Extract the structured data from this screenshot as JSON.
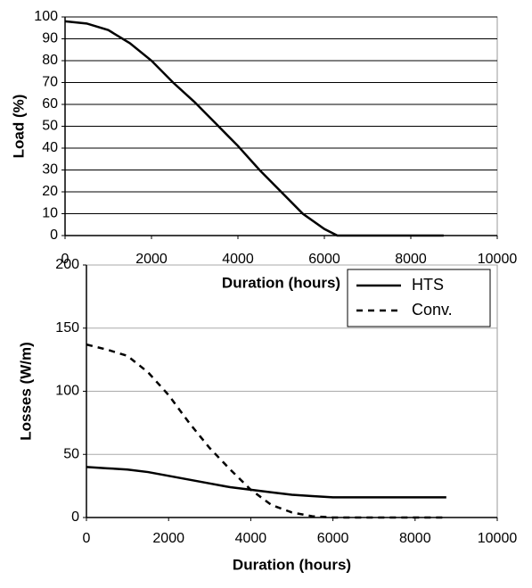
{
  "chart_data": [
    {
      "type": "line",
      "x_label": "Duration (hours)",
      "y_label": "Load (%)",
      "x": [
        0,
        500,
        1000,
        1500,
        2000,
        2500,
        3000,
        3500,
        4000,
        4500,
        5000,
        5500,
        6000,
        6300,
        7000,
        8000,
        8760
      ],
      "values": [
        98,
        97,
        94,
        88,
        80,
        70,
        61,
        51,
        41,
        30,
        20,
        10,
        3,
        0,
        0,
        0,
        0
      ],
      "color": "#000000",
      "xlim": [
        0,
        10000
      ],
      "xticks": [
        0,
        2000,
        4000,
        6000,
        8000,
        10000
      ],
      "ylim": [
        0,
        100
      ],
      "yticks": [
        0,
        10,
        20,
        30,
        40,
        50,
        60,
        70,
        80,
        90,
        100
      ],
      "grid": true
    },
    {
      "type": "line",
      "x_label": "Duration (hours)",
      "y_label": "Losses (W/m)",
      "x": [
        0,
        500,
        1000,
        1500,
        2000,
        2500,
        3000,
        3500,
        4000,
        4500,
        5000,
        5500,
        6000,
        7000,
        8000,
        8760
      ],
      "series": [
        {
          "name": "HTS",
          "color": "#000000",
          "dash": "solid",
          "values": [
            40,
            39,
            38,
            36,
            33,
            30,
            27,
            24,
            22,
            20,
            18,
            17,
            16,
            16,
            16,
            16
          ]
        },
        {
          "name": "Conv.",
          "color": "#000000",
          "dash": "dashed",
          "values": [
            137,
            133,
            128,
            115,
            97,
            75,
            55,
            38,
            22,
            10,
            4,
            1,
            0,
            0,
            0,
            0
          ]
        }
      ],
      "xlim": [
        0,
        10000
      ],
      "xticks": [
        0,
        2000,
        4000,
        6000,
        8000,
        10000
      ],
      "ylim": [
        0,
        200
      ],
      "yticks": [
        0,
        50,
        100,
        150,
        200
      ],
      "grid": true,
      "legend": "top-right"
    }
  ]
}
